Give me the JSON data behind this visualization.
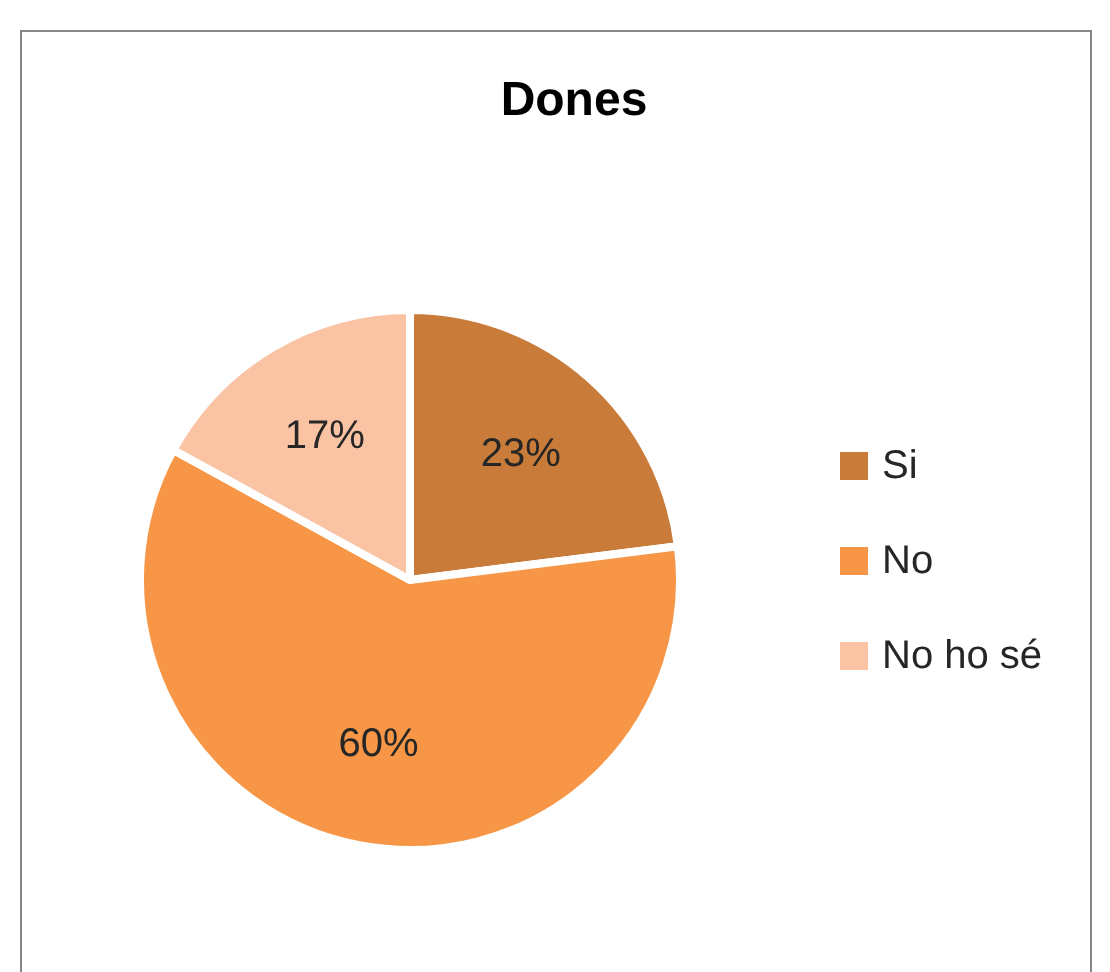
{
  "chart_data": {
    "type": "pie",
    "title": "Dones",
    "categories": [
      "Si",
      "No",
      "No ho sé"
    ],
    "values": [
      23,
      60,
      17
    ],
    "value_labels": [
      "23%",
      "60%",
      "17%"
    ],
    "colors": [
      "#c97b3a",
      "#f79646",
      "#fac3a3"
    ],
    "legend": "right"
  }
}
